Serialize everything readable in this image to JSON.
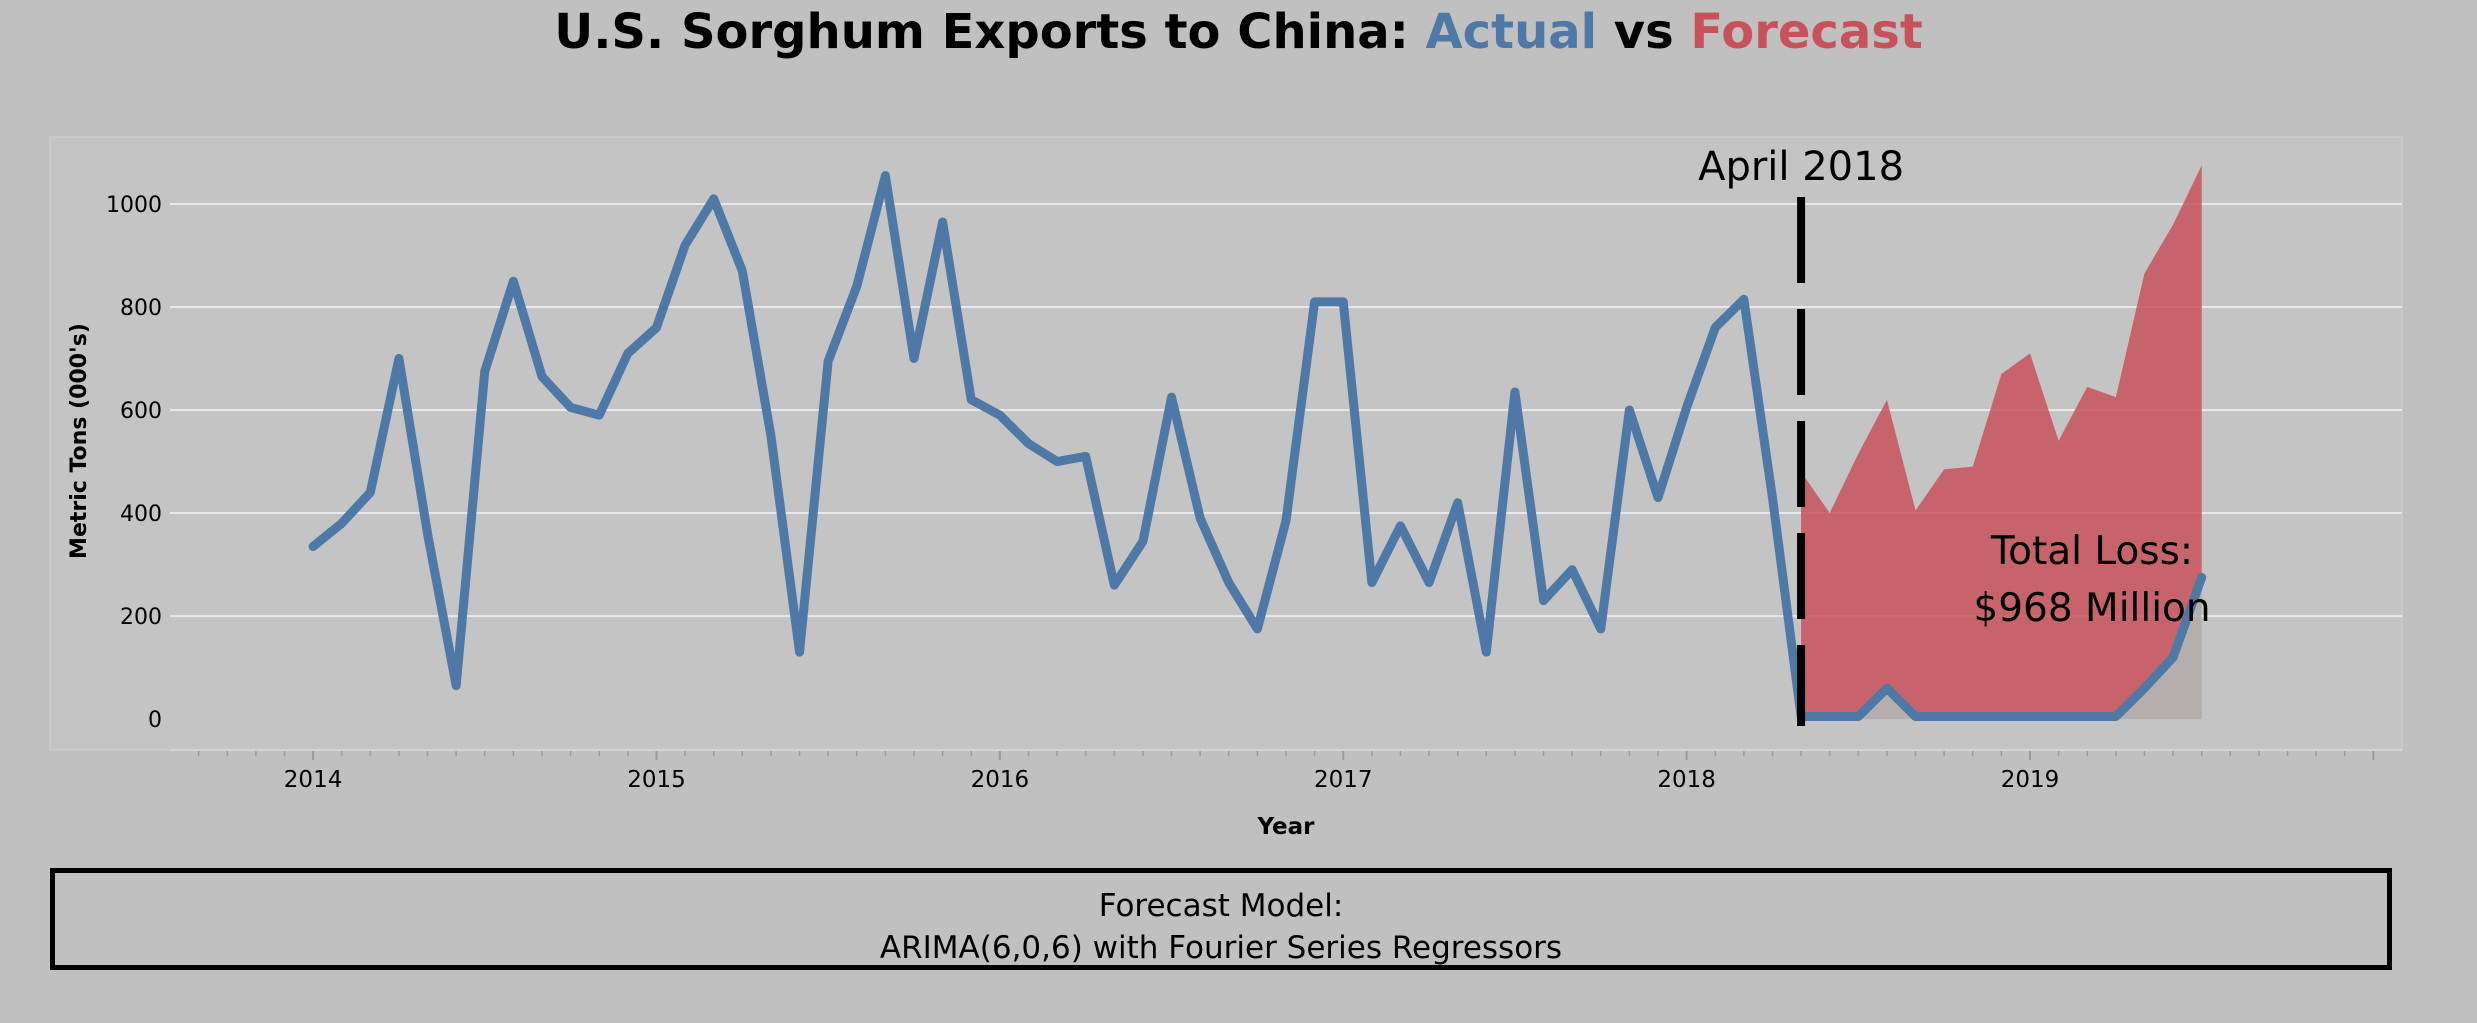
{
  "title": {
    "prefix": "U.S. Sorghum Exports to China: ",
    "actual": "Actual",
    "vs": " vs ",
    "forecast": "Forecast"
  },
  "colors": {
    "actual": "#4e79a7",
    "forecast": "#c8525c",
    "background": "#c0c0c0"
  },
  "annotations": {
    "event_label": "April 2018",
    "event_date": "2018-05",
    "loss_line1": "Total Loss:",
    "loss_line2": "$968 Million"
  },
  "model_box": {
    "line1": "Forecast Model:",
    "line2": "ARIMA(6,0,6) with Fourier Series Regressors"
  },
  "chart_data": {
    "type": "line",
    "title": "U.S. Sorghum Exports to China: Actual vs Forecast",
    "xlabel": "Year",
    "ylabel": "Metric Tons (000's)",
    "ylim": [
      -60,
      1130
    ],
    "xlim": [
      "2013-08",
      "2020-02"
    ],
    "y_ticks": [
      0,
      200,
      400,
      600,
      800,
      1000
    ],
    "x_ticks": [
      "2014",
      "2015",
      "2016",
      "2017",
      "2018",
      "2019"
    ],
    "grid": true,
    "legend": "none",
    "series": [
      {
        "name": "Actual",
        "x": [
          "2014-01",
          "2014-02",
          "2014-03",
          "2014-04",
          "2014-05",
          "2014-06",
          "2014-07",
          "2014-08",
          "2014-09",
          "2014-10",
          "2014-11",
          "2014-12",
          "2015-01",
          "2015-02",
          "2015-03",
          "2015-04",
          "2015-05",
          "2015-06",
          "2015-07",
          "2015-08",
          "2015-09",
          "2015-10",
          "2015-11",
          "2015-12",
          "2016-01",
          "2016-02",
          "2016-03",
          "2016-04",
          "2016-05",
          "2016-06",
          "2016-07",
          "2016-08",
          "2016-09",
          "2016-10",
          "2016-11",
          "2016-12",
          "2017-01",
          "2017-02",
          "2017-03",
          "2017-04",
          "2017-05",
          "2017-06",
          "2017-07",
          "2017-08",
          "2017-09",
          "2017-10",
          "2017-11",
          "2017-12",
          "2018-01",
          "2018-02",
          "2018-03",
          "2018-04",
          "2018-05",
          "2018-06",
          "2018-07",
          "2018-08",
          "2018-09",
          "2018-10",
          "2018-11",
          "2018-12",
          "2019-01",
          "2019-02",
          "2019-03",
          "2019-04",
          "2019-05",
          "2019-06",
          "2019-07"
        ],
        "values": [
          335,
          380,
          440,
          700,
          360,
          65,
          675,
          850,
          665,
          605,
          590,
          710,
          760,
          920,
          1010,
          870,
          550,
          130,
          695,
          840,
          1055,
          700,
          965,
          620,
          590,
          535,
          500,
          510,
          260,
          345,
          625,
          390,
          265,
          175,
          385,
          810,
          810,
          265,
          375,
          265,
          420,
          130,
          635,
          230,
          290,
          175,
          600,
          430,
          605,
          760,
          815,
          430,
          5,
          5,
          5,
          60,
          5,
          5,
          5,
          5,
          5,
          5,
          5,
          5,
          60,
          120,
          275
        ]
      },
      {
        "name": "Forecast",
        "x": [
          "2018-05",
          "2018-06",
          "2018-07",
          "2018-08",
          "2018-09",
          "2018-10",
          "2018-11",
          "2018-12",
          "2019-01",
          "2019-02",
          "2019-03",
          "2019-04",
          "2019-05",
          "2019-06",
          "2019-07"
        ],
        "values": [
          480,
          400,
          515,
          620,
          405,
          485,
          490,
          670,
          710,
          540,
          645,
          625,
          865,
          960,
          1075
        ]
      }
    ]
  }
}
